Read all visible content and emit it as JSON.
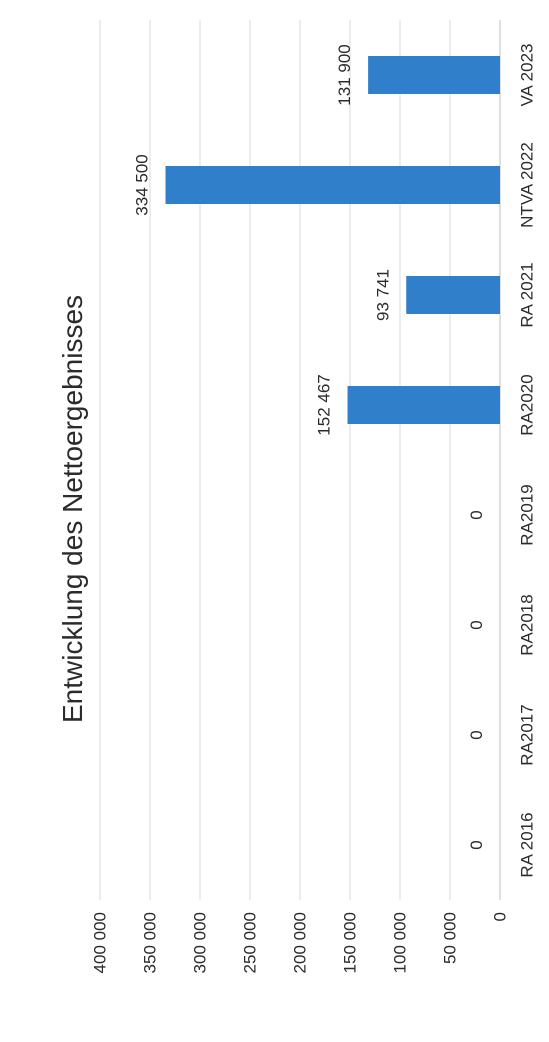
{
  "chart_data": {
    "type": "bar",
    "orientation": "vertical bars (page rotated 90° counter-clockwise)",
    "title": "Entwicklung des Nettoergebnisses",
    "xlabel": "",
    "ylabel": "",
    "categories": [
      "RA 2016",
      "RA2017",
      "RA2018",
      "RA2019",
      "RA2020",
      "RA 2021",
      "NTVA 2022",
      "VA 2023"
    ],
    "values": [
      0,
      0,
      0,
      0,
      152467,
      93741,
      334500,
      131900
    ],
    "data_labels": [
      "0",
      "0",
      "0",
      "0",
      "152 467",
      "93 741",
      "334 500",
      "131 900"
    ],
    "ylim": [
      0,
      400000
    ],
    "yticks": [
      0,
      50000,
      100000,
      150000,
      200000,
      250000,
      300000,
      350000,
      400000
    ],
    "ytick_labels": [
      "0",
      "50 000",
      "100 000",
      "150 000",
      "200 000",
      "250 000",
      "300 000",
      "350 000",
      "400 000"
    ],
    "grid": true,
    "legend": "none",
    "bar_color": "#2f7fcb",
    "grid_color": "#d9d9d9"
  }
}
